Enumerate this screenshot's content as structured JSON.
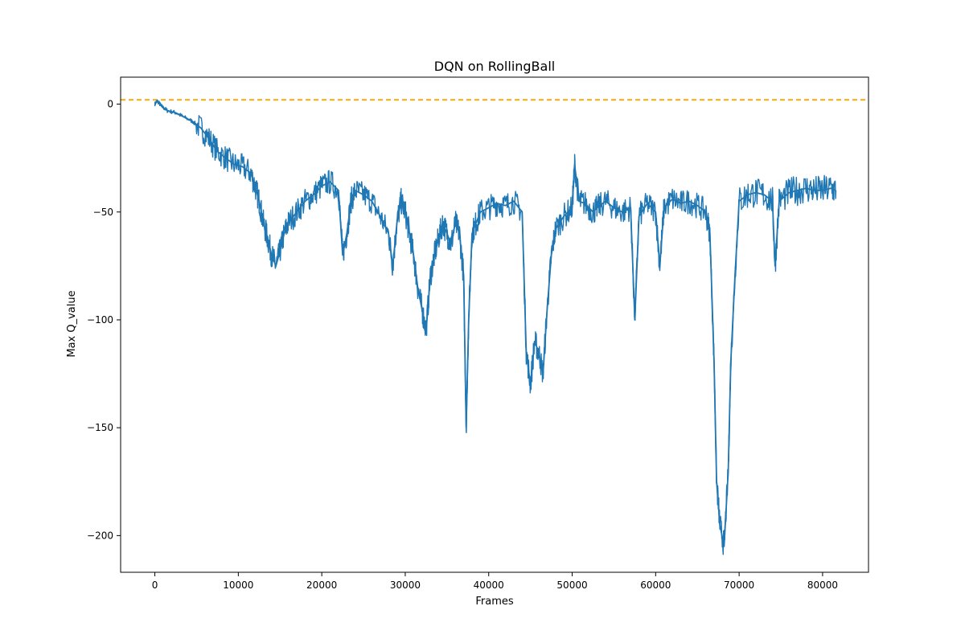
{
  "chart_data": {
    "type": "line",
    "title": "DQN on RollingBall",
    "xlabel": "Frames",
    "ylabel": "Max Q_value",
    "xlim": [
      -4100,
      85500
    ],
    "ylim": [
      -217,
      12.5
    ],
    "xticks": [
      0,
      10000,
      20000,
      30000,
      40000,
      50000,
      60000,
      70000,
      80000
    ],
    "yticks": [
      0,
      -50,
      -100,
      -150,
      -200
    ],
    "grid": false,
    "reference_line": {
      "y": 2,
      "style": "dashed",
      "color": "#ffa500"
    },
    "series": [
      {
        "color": "#1f77b4",
        "points": [
          [
            0,
            0
          ],
          [
            300,
            1.5
          ],
          [
            800,
            -1
          ],
          [
            1500,
            -3
          ],
          [
            2500,
            -4
          ],
          [
            3500,
            -6
          ],
          [
            4500,
            -8
          ],
          [
            5500,
            -11
          ],
          [
            6500,
            -16
          ],
          [
            7500,
            -22
          ],
          [
            8500,
            -25
          ],
          [
            9500,
            -28
          ],
          [
            10500,
            -29
          ],
          [
            11500,
            -32
          ],
          [
            12000,
            -38
          ],
          [
            12500,
            -45
          ],
          [
            13000,
            -55
          ],
          [
            13500,
            -62
          ],
          [
            14000,
            -70
          ],
          [
            14500,
            -75
          ],
          [
            15000,
            -68
          ],
          [
            15500,
            -60
          ],
          [
            16000,
            -55
          ],
          [
            17000,
            -50
          ],
          [
            18000,
            -45
          ],
          [
            19000,
            -42
          ],
          [
            20000,
            -38
          ],
          [
            21000,
            -36
          ],
          [
            22000,
            -40
          ],
          [
            22500,
            -70
          ],
          [
            23000,
            -60
          ],
          [
            23500,
            -45
          ],
          [
            24000,
            -40
          ],
          [
            25000,
            -42
          ],
          [
            26000,
            -45
          ],
          [
            27000,
            -52
          ],
          [
            28000,
            -60
          ],
          [
            28500,
            -75
          ],
          [
            29000,
            -55
          ],
          [
            29500,
            -45
          ],
          [
            30000,
            -50
          ],
          [
            30500,
            -60
          ],
          [
            31000,
            -70
          ],
          [
            31500,
            -85
          ],
          [
            32000,
            -95
          ],
          [
            32500,
            -105
          ],
          [
            33000,
            -80
          ],
          [
            33500,
            -70
          ],
          [
            34000,
            -62
          ],
          [
            34500,
            -55
          ],
          [
            35000,
            -60
          ],
          [
            35500,
            -65
          ],
          [
            36000,
            -55
          ],
          [
            36500,
            -60
          ],
          [
            37000,
            -80
          ],
          [
            37300,
            -150
          ],
          [
            37600,
            -100
          ],
          [
            38000,
            -60
          ],
          [
            38500,
            -55
          ],
          [
            39000,
            -50
          ],
          [
            40000,
            -48
          ],
          [
            41000,
            -46
          ],
          [
            42000,
            -47
          ],
          [
            43000,
            -45
          ],
          [
            44000,
            -50
          ],
          [
            44500,
            -115
          ],
          [
            45000,
            -130
          ],
          [
            45500,
            -110
          ],
          [
            46000,
            -115
          ],
          [
            46500,
            -125
          ],
          [
            47000,
            -95
          ],
          [
            47500,
            -70
          ],
          [
            48000,
            -58
          ],
          [
            49000,
            -52
          ],
          [
            50000,
            -48
          ],
          [
            50300,
            -28
          ],
          [
            50800,
            -45
          ],
          [
            51500,
            -46
          ],
          [
            52500,
            -50
          ],
          [
            53000,
            -48
          ],
          [
            54000,
            -45
          ],
          [
            55000,
            -48
          ],
          [
            56000,
            -50
          ],
          [
            57000,
            -48
          ],
          [
            57500,
            -100
          ],
          [
            58000,
            -52
          ],
          [
            59000,
            -46
          ],
          [
            60000,
            -50
          ],
          [
            60500,
            -75
          ],
          [
            61000,
            -48
          ],
          [
            62000,
            -44
          ],
          [
            63000,
            -46
          ],
          [
            64000,
            -45
          ],
          [
            65000,
            -47
          ],
          [
            66000,
            -50
          ],
          [
            66500,
            -60
          ],
          [
            67000,
            -120
          ],
          [
            67300,
            -175
          ],
          [
            67700,
            -195
          ],
          [
            68200,
            -205
          ],
          [
            68700,
            -170
          ],
          [
            69000,
            -120
          ],
          [
            69500,
            -80
          ],
          [
            70000,
            -45
          ],
          [
            71000,
            -42
          ],
          [
            72000,
            -41
          ],
          [
            73000,
            -42
          ],
          [
            74000,
            -45
          ],
          [
            74300,
            -75
          ],
          [
            74800,
            -45
          ],
          [
            76000,
            -41
          ],
          [
            77000,
            -40
          ],
          [
            78000,
            -39
          ],
          [
            79000,
            -40
          ],
          [
            80000,
            -40
          ],
          [
            81000,
            -39
          ],
          [
            81600,
            -40
          ]
        ]
      }
    ]
  }
}
